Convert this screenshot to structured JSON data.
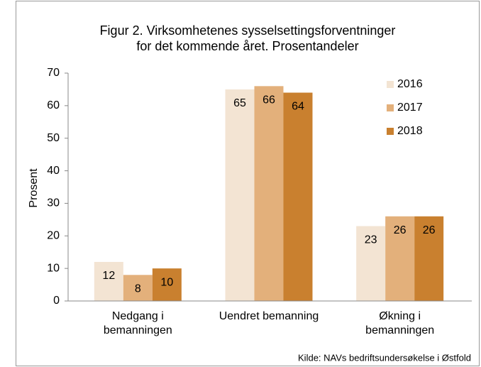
{
  "chart_data": {
    "type": "bar",
    "title": "Figur 2. Virksomhetenes sysselsettingsforventninger\nfor det kommende året. Prosentandeler",
    "y_label": "Prosent",
    "source": "Kilde: NAVs  bedriftsundersøkelse  i Østfold",
    "categories": [
      "Nedgang i\nbemanningen",
      "Uendret bemanning",
      "Økning i\nbemanningen"
    ],
    "series": [
      {
        "name": "2016",
        "color": "#f3e4d3",
        "values": [
          12,
          65,
          23
        ]
      },
      {
        "name": "2017",
        "color": "#e3b07b",
        "values": [
          8,
          66,
          26
        ]
      },
      {
        "name": "2018",
        "color": "#c9802f",
        "values": [
          10,
          64,
          26
        ]
      }
    ],
    "ylim": [
      0,
      70
    ],
    "yticks": [
      0,
      10,
      20,
      30,
      40,
      50,
      60,
      70
    ],
    "grid": false,
    "legend": "upper right",
    "data_labels": true
  }
}
